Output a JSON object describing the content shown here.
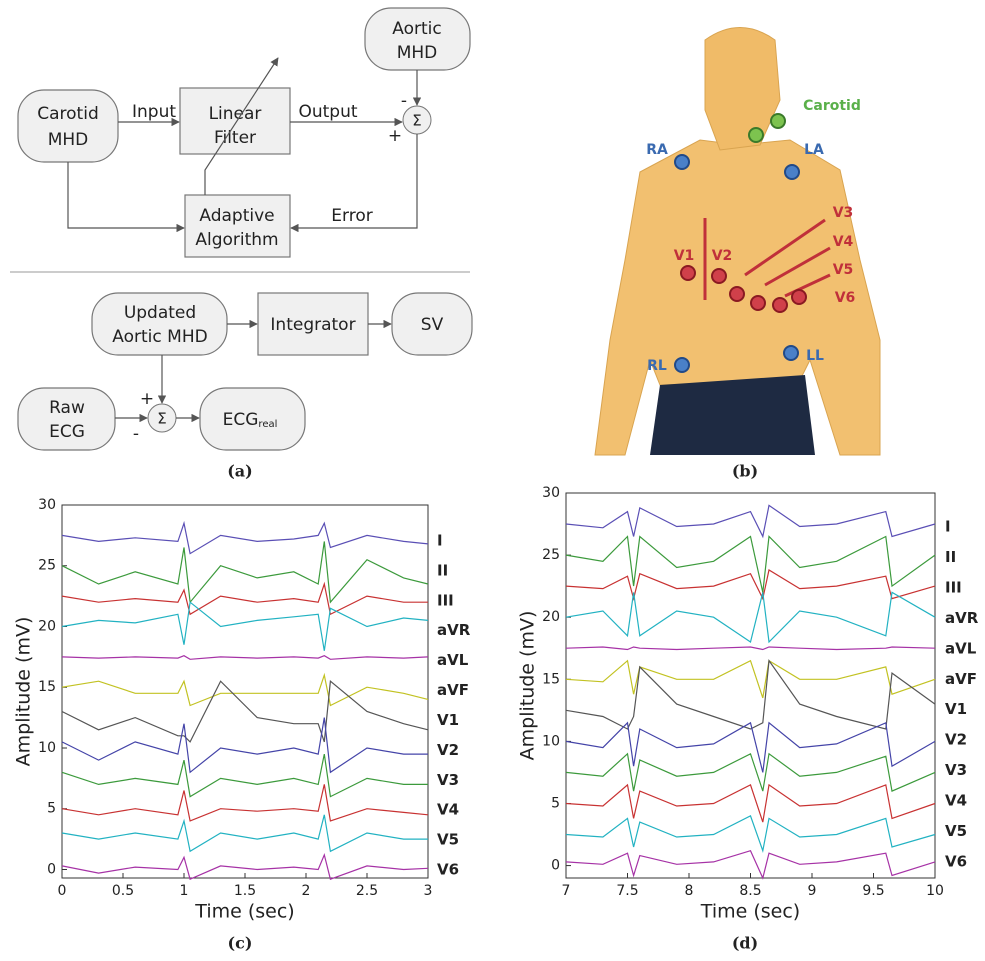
{
  "diagram_a": {
    "nodes": [
      {
        "lines": [
          "Carotid",
          "MHD"
        ]
      },
      {
        "lines": [
          "Linear",
          "Filter"
        ]
      },
      {
        "lines": [
          "Aortic",
          "MHD"
        ]
      },
      {
        "lines": [
          "Adaptive",
          "Algorithm"
        ]
      },
      {
        "lines": [
          "Updated",
          "Aortic MHD"
        ]
      },
      {
        "lines": [
          "Integrator"
        ]
      },
      {
        "lines": [
          "SV"
        ]
      },
      {
        "lines": [
          "Raw",
          "ECG"
        ]
      },
      {
        "main": "ECG",
        "subscript": "real"
      }
    ],
    "edge_labels": [
      "Input",
      "Output",
      "Error"
    ],
    "sum_symbol": "Σ",
    "signs": [
      "-",
      "+",
      "+",
      "-"
    ],
    "caption": "(a)"
  },
  "image_b": {
    "labels": [
      "Carotid",
      "RA",
      "LA",
      "V1",
      "V2",
      "V3",
      "V4",
      "V5",
      "V6",
      "RL",
      "LL"
    ],
    "caption": "(b)"
  },
  "chart_data": [
    {
      "type": "line",
      "caption": "(c)",
      "xlabel": "Time (sec)",
      "ylabel": "Amplitude (mV)",
      "x": [
        0,
        0.3,
        0.6,
        0.95,
        1.0,
        1.05,
        1.3,
        1.6,
        1.9,
        2.1,
        2.15,
        2.2,
        2.5,
        2.8,
        3
      ],
      "xlim": [
        0,
        3
      ],
      "xticks": [
        0,
        0.5,
        1,
        1.5,
        2,
        2.5,
        3
      ],
      "ylim": [
        -0.7,
        30
      ],
      "yticks": [
        0,
        5,
        10,
        15,
        20,
        25,
        30
      ],
      "grid": false,
      "series": [
        {
          "name": "I",
          "color": "#5a4fb5",
          "values": [
            27.5,
            27,
            27.3,
            27,
            28.5,
            26,
            27.5,
            27,
            27.2,
            27.5,
            28.5,
            26.5,
            27.5,
            27,
            26.8
          ]
        },
        {
          "name": "II",
          "color": "#3c9a3c",
          "values": [
            25,
            23.5,
            24.5,
            23.5,
            26.5,
            22,
            25,
            24,
            24.5,
            23.5,
            27,
            22,
            25.5,
            24,
            23.5
          ]
        },
        {
          "name": "III",
          "color": "#c83232",
          "values": [
            22.5,
            22,
            22.3,
            22,
            23,
            21,
            22.5,
            22,
            22.3,
            22,
            23.5,
            21,
            22.5,
            22,
            22
          ]
        },
        {
          "name": "aVR",
          "color": "#22b2c2",
          "values": [
            20,
            20.5,
            20.3,
            21,
            18.5,
            22,
            20,
            20.5,
            20.8,
            21,
            18,
            21.5,
            20,
            20.7,
            20.5
          ]
        },
        {
          "name": "aVL",
          "color": "#a632a6",
          "values": [
            17.5,
            17.4,
            17.5,
            17.4,
            17.6,
            17.3,
            17.5,
            17.4,
            17.5,
            17.4,
            17.6,
            17.3,
            17.5,
            17.4,
            17.5
          ]
        },
        {
          "name": "aVF",
          "color": "#c2c222",
          "values": [
            15,
            15.5,
            14.5,
            14.5,
            15.5,
            13.5,
            14.5,
            14.5,
            14.5,
            14.5,
            16,
            13.5,
            15,
            14.5,
            14
          ]
        },
        {
          "name": "V1",
          "color": "#555555",
          "values": [
            13,
            11.5,
            12.5,
            11,
            11,
            10.5,
            15.5,
            12.5,
            12,
            12,
            10.5,
            15.5,
            13,
            12,
            11.5
          ]
        },
        {
          "name": "V2",
          "color": "#4444a8",
          "values": [
            10.5,
            9,
            10.5,
            9.5,
            12,
            8,
            10,
            9.5,
            10,
            9.5,
            12.5,
            8,
            10,
            9.5,
            9.5
          ]
        },
        {
          "name": "V3",
          "color": "#3c9a3c",
          "values": [
            8,
            7,
            7.5,
            7,
            9,
            6,
            7.5,
            7,
            7.5,
            7,
            9.5,
            6,
            7.5,
            7,
            7
          ]
        },
        {
          "name": "V4",
          "color": "#c83232",
          "values": [
            5,
            4.5,
            5,
            4.5,
            6.5,
            4,
            5,
            4.8,
            5,
            4.8,
            7,
            4,
            5,
            4.7,
            4.5
          ]
        },
        {
          "name": "V5",
          "color": "#22b2c2",
          "values": [
            3,
            2.5,
            3,
            2.5,
            4,
            1.5,
            3,
            2.5,
            3,
            2.5,
            4.5,
            1.5,
            3,
            2.5,
            2.5
          ]
        },
        {
          "name": "V6",
          "color": "#a632a6",
          "values": [
            0.3,
            -0.3,
            0.2,
            0,
            1,
            -0.8,
            0.3,
            0,
            0.2,
            0,
            1.2,
            -0.8,
            0.3,
            0,
            0.1
          ]
        }
      ]
    },
    {
      "type": "line",
      "caption": "(d)",
      "xlabel": "Time (sec)",
      "ylabel": "Amplitude (mV)",
      "x": [
        7,
        7.3,
        7.5,
        7.55,
        7.6,
        7.9,
        8.2,
        8.5,
        8.6,
        8.65,
        8.9,
        9.2,
        9.6,
        9.65,
        10
      ],
      "xlim": [
        7,
        10
      ],
      "xticks": [
        7,
        7.5,
        8,
        8.5,
        9,
        9.5,
        10
      ],
      "ylim": [
        -1,
        30
      ],
      "yticks": [
        0,
        5,
        10,
        15,
        20,
        25,
        30
      ],
      "grid": false,
      "series": [
        {
          "name": "I",
          "color": "#5a4fb5",
          "values": [
            27.5,
            27.2,
            28.5,
            26.5,
            28.8,
            27.3,
            27.5,
            28.5,
            26.5,
            29,
            27.3,
            27.5,
            28.5,
            26.5,
            27.5
          ]
        },
        {
          "name": "II",
          "color": "#3c9a3c",
          "values": [
            25,
            24.5,
            26.5,
            22.5,
            26.5,
            24,
            24.5,
            26.5,
            22,
            26.5,
            24,
            24.5,
            26.5,
            22.5,
            25
          ]
        },
        {
          "name": "III",
          "color": "#c83232",
          "values": [
            22.5,
            22.3,
            23.3,
            21.5,
            23.5,
            22.3,
            22.5,
            23.5,
            21.5,
            23.8,
            22.3,
            22.5,
            23.3,
            21.5,
            22.5
          ]
        },
        {
          "name": "aVR",
          "color": "#22b2c2",
          "values": [
            20,
            20.5,
            18.5,
            22,
            18.5,
            20.5,
            20,
            18,
            22,
            18,
            20.5,
            20,
            18.5,
            22,
            20
          ]
        },
        {
          "name": "aVL",
          "color": "#a632a6",
          "values": [
            17.5,
            17.6,
            17.4,
            17.6,
            17.5,
            17.4,
            17.5,
            17.6,
            17.4,
            17.6,
            17.5,
            17.4,
            17.5,
            17.6,
            17.5
          ]
        },
        {
          "name": "aVF",
          "color": "#c2c222",
          "values": [
            15,
            14.8,
            16.5,
            13.8,
            16,
            15,
            15,
            16.5,
            13.5,
            16.5,
            15,
            15,
            16,
            13.8,
            15
          ]
        },
        {
          "name": "V1",
          "color": "#555555",
          "values": [
            12.5,
            12,
            11,
            12,
            16,
            13,
            12,
            11,
            11.5,
            16.5,
            13,
            12,
            11,
            15.5,
            13
          ]
        },
        {
          "name": "V2",
          "color": "#4444a8",
          "values": [
            10,
            9.5,
            11.5,
            8,
            11,
            9.5,
            9.8,
            11.5,
            7.5,
            11.5,
            9.5,
            9.8,
            11.5,
            8,
            10
          ]
        },
        {
          "name": "V3",
          "color": "#3c9a3c",
          "values": [
            7.5,
            7.2,
            9,
            6,
            8.5,
            7.2,
            7.5,
            9,
            6,
            9,
            7.2,
            7.5,
            8.8,
            6,
            7.5
          ]
        },
        {
          "name": "V4",
          "color": "#c83232",
          "values": [
            5,
            4.8,
            6.5,
            3.8,
            6,
            4.8,
            5,
            6.5,
            3.5,
            6.5,
            4.8,
            5,
            6.5,
            3.8,
            5
          ]
        },
        {
          "name": "V5",
          "color": "#22b2c2",
          "values": [
            2.5,
            2.3,
            3.8,
            1.5,
            3.5,
            2.3,
            2.5,
            4,
            1.2,
            3.8,
            2.3,
            2.5,
            3.8,
            1.5,
            2.5
          ]
        },
        {
          "name": "V6",
          "color": "#a632a6",
          "values": [
            0.3,
            0.1,
            1,
            -0.8,
            0.8,
            0.1,
            0.3,
            1.2,
            -1,
            1,
            0.1,
            0.3,
            1,
            -0.8,
            0.3
          ]
        }
      ]
    }
  ]
}
